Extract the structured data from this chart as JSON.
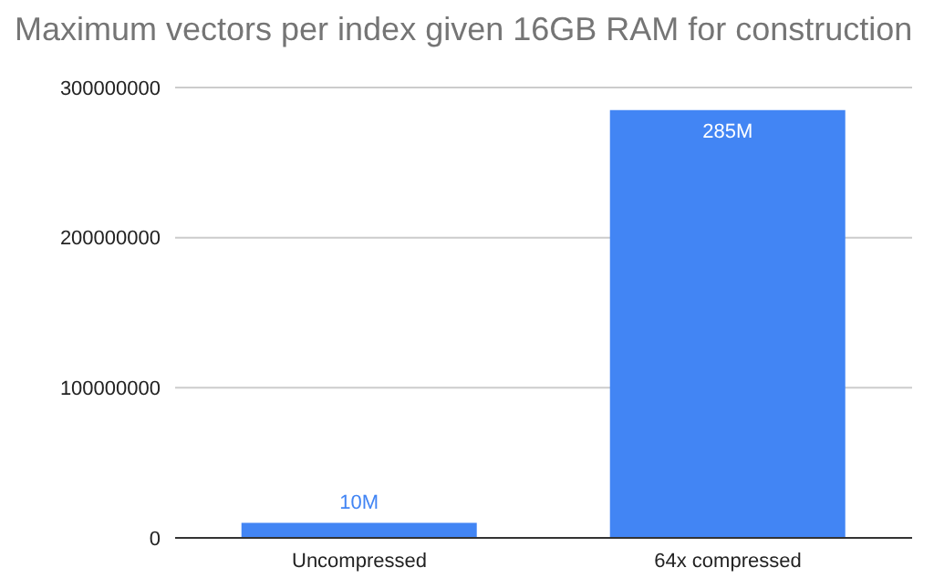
{
  "chart_data": {
    "type": "bar",
    "title": "Maximum vectors per index given 16GB RAM for construction",
    "categories": [
      "Uncompressed",
      "64x compressed"
    ],
    "series": [
      {
        "color": "#4285f4",
        "values": [
          10000000,
          285000000
        ],
        "value_labels": [
          "10M",
          "285M"
        ]
      }
    ],
    "ylim": [
      0,
      300000000
    ],
    "yticks": [
      0,
      100000000,
      200000000,
      300000000
    ],
    "grid": "y",
    "legend": false
  }
}
